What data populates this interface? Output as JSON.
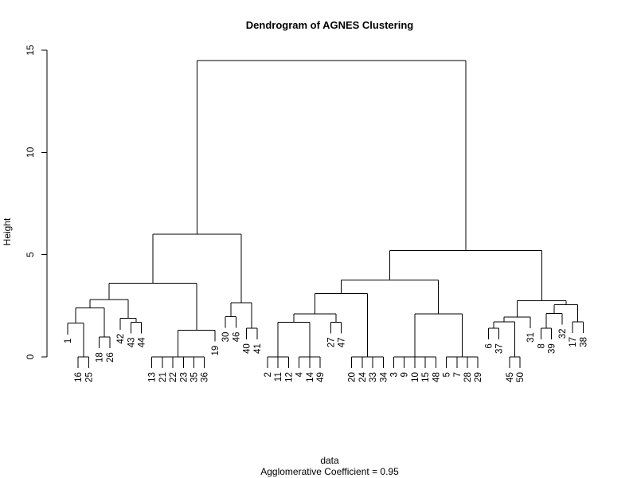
{
  "chart_data": {
    "type": "dendrogram",
    "title": "Dendrogram of AGNES Clustering",
    "xlabel": "data",
    "subtitle": "Agglomerative Coefficient =  0.95",
    "ylabel": "Height",
    "ylim": [
      0,
      15
    ],
    "yticks": [
      "0",
      "5",
      "10",
      "15"
    ],
    "leaf_order": [
      "1",
      "16",
      "25",
      "18",
      "26",
      "42",
      "43",
      "44",
      "13",
      "21",
      "22",
      "23",
      "35",
      "36",
      "19",
      "30",
      "46",
      "40",
      "41",
      "2",
      "11",
      "12",
      "4",
      "14",
      "49",
      "27",
      "47",
      "20",
      "24",
      "33",
      "34",
      "3",
      "9",
      "10",
      "15",
      "48",
      "5",
      "7",
      "28",
      "29",
      "6",
      "37",
      "45",
      "50",
      "31",
      "8",
      "39",
      "32",
      "17",
      "38"
    ],
    "merges": [
      {
        "nodes": [
          "L:16",
          "L:25"
        ],
        "height": 0.0
      },
      {
        "nodes": [
          "L:1",
          "C:0"
        ],
        "height": 1.65
      },
      {
        "nodes": [
          "L:18",
          "L:26"
        ],
        "height": 0.97
      },
      {
        "nodes": [
          "C:1",
          "C:2"
        ],
        "height": 2.4
      },
      {
        "nodes": [
          "L:43",
          "L:44"
        ],
        "height": 1.7
      },
      {
        "nodes": [
          "L:42",
          "C:4"
        ],
        "height": 1.88
      },
      {
        "nodes": [
          "C:3",
          "C:5"
        ],
        "height": 2.8
      },
      {
        "nodes": [
          "L:13",
          "L:21",
          "L:22",
          "L:23",
          "L:35",
          "L:36"
        ],
        "height": 0.0
      },
      {
        "nodes": [
          "C:7",
          "L:19"
        ],
        "height": 1.3
      },
      {
        "nodes": [
          "C:6",
          "C:8"
        ],
        "height": 3.6
      },
      {
        "nodes": [
          "L:30",
          "L:46"
        ],
        "height": 1.97
      },
      {
        "nodes": [
          "L:40",
          "L:41"
        ],
        "height": 1.4
      },
      {
        "nodes": [
          "C:10",
          "C:11"
        ],
        "height": 2.65
      },
      {
        "nodes": [
          "C:9",
          "C:12"
        ],
        "height": 6.0
      },
      {
        "nodes": [
          "L:2",
          "L:11",
          "L:12"
        ],
        "height": 0.0
      },
      {
        "nodes": [
          "L:4",
          "L:14",
          "L:49"
        ],
        "height": 0.0
      },
      {
        "nodes": [
          "C:14",
          "C:15"
        ],
        "height": 1.7
      },
      {
        "nodes": [
          "L:27",
          "L:47"
        ],
        "height": 1.7
      },
      {
        "nodes": [
          "C:16",
          "C:17"
        ],
        "height": 2.1
      },
      {
        "nodes": [
          "L:20",
          "L:24",
          "L:33",
          "L:34"
        ],
        "height": 0.0
      },
      {
        "nodes": [
          "C:18",
          "C:19"
        ],
        "height": 3.1
      },
      {
        "nodes": [
          "L:3",
          "L:9",
          "L:10",
          "L:15",
          "L:48"
        ],
        "height": 0.0
      },
      {
        "nodes": [
          "L:5",
          "L:7",
          "L:28",
          "L:29"
        ],
        "height": 0.0
      },
      {
        "nodes": [
          "C:21",
          "C:22"
        ],
        "height": 2.1
      },
      {
        "nodes": [
          "C:20",
          "C:23"
        ],
        "height": 3.75
      },
      {
        "nodes": [
          "L:6",
          "L:37"
        ],
        "height": 1.4
      },
      {
        "nodes": [
          "L:45",
          "L:50"
        ],
        "height": 0.0
      },
      {
        "nodes": [
          "C:25",
          "C:26"
        ],
        "height": 1.72
      },
      {
        "nodes": [
          "C:27",
          "L:31"
        ],
        "height": 1.95
      },
      {
        "nodes": [
          "L:8",
          "L:39"
        ],
        "height": 1.4
      },
      {
        "nodes": [
          "C:29",
          "L:32"
        ],
        "height": 2.13
      },
      {
        "nodes": [
          "L:17",
          "L:38"
        ],
        "height": 1.72
      },
      {
        "nodes": [
          "C:30",
          "C:31"
        ],
        "height": 2.55
      },
      {
        "nodes": [
          "C:28",
          "C:32"
        ],
        "height": 2.75
      },
      {
        "nodes": [
          "C:24",
          "C:33"
        ],
        "height": 5.2
      },
      {
        "nodes": [
          "C:13",
          "C:34"
        ],
        "height": 14.5
      }
    ],
    "grid": false,
    "legend": "none"
  }
}
